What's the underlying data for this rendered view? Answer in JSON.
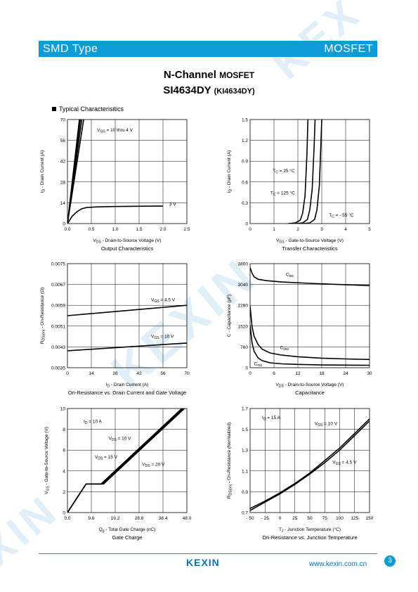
{
  "header": {
    "left": "SMD Type",
    "right": "MOSFET"
  },
  "title": {
    "main": "N-Channel",
    "main_suffix": "MOSFET",
    "part": "SI4634DY",
    "alt": "(KI4634DY)"
  },
  "section": "Typical  Characterisitics",
  "footer": {
    "logo": "KEXIN",
    "url": "www.kexin.com.cn",
    "page": "3"
  },
  "colors": {
    "accent": "#0e9bd6"
  },
  "chart_data": [
    {
      "type": "line",
      "title": "Output Characteristics",
      "xlabel": "V_DS - Drain-to-Source Voltage (V)",
      "ylabel": "I_D - Drain Current (A)",
      "xlim": [
        0,
        2.5
      ],
      "ylim": [
        0,
        70
      ],
      "xticks": [
        0.0,
        0.5,
        1.0,
        1.5,
        2.0,
        2.5
      ],
      "xtick_labels": [
        "0.0",
        "0.5",
        "1.0",
        "1.5",
        "2.0",
        "2.5"
      ],
      "yticks": [
        0,
        14,
        28,
        42,
        56,
        70
      ],
      "ytick_labels": [
        "0",
        "14",
        "28",
        "42",
        "56",
        "70"
      ],
      "series": [
        {
          "name": "V_GS = 10 thru 4 V",
          "x": [
            0,
            0.25
          ],
          "y": [
            0,
            70
          ]
        },
        {
          "x": [
            0,
            0.27
          ],
          "y": [
            0,
            70
          ]
        },
        {
          "x": [
            0,
            0.3
          ],
          "y": [
            0,
            70
          ]
        },
        {
          "x": [
            0,
            0.34
          ],
          "y": [
            0,
            70
          ]
        },
        {
          "name": "3 V",
          "x": [
            0,
            0.1,
            0.2,
            0.3,
            0.4,
            0.6,
            1.0,
            1.5,
            2.0
          ],
          "y": [
            0,
            5,
            8,
            10,
            10.8,
            11.2,
            11.5,
            11.7,
            11.8
          ]
        }
      ],
      "annotations": [
        {
          "text": "V",
          "sub": "GS",
          "rest": " = 10 thru 4 V",
          "x": 0.62,
          "y": 62
        },
        {
          "text": "3 V",
          "sub": "",
          "rest": "",
          "x": 2.13,
          "y": 12
        }
      ]
    },
    {
      "type": "line",
      "title": "Transfer Characteristics",
      "xlabel": "V_GS - Gate-to-Source Voltage (V)",
      "ylabel": "I_D - Drain Current (A)",
      "xlim": [
        0,
        5
      ],
      "ylim": [
        0,
        1.5
      ],
      "xticks": [
        0,
        1,
        2,
        3,
        4,
        5
      ],
      "xtick_labels": [
        "0",
        "1",
        "2",
        "3",
        "4",
        "5"
      ],
      "yticks": [
        0,
        0.3,
        0.6,
        0.9,
        1.2,
        1.5
      ],
      "ytick_labels": [
        "0",
        "0.3",
        "0.6",
        "0.9",
        "1.2",
        "1.5"
      ],
      "series": [
        {
          "name": "T_C = 125 °C",
          "x": [
            1.6,
            1.9,
            2.1,
            2.2,
            2.3,
            2.38,
            2.42
          ],
          "y": [
            0,
            0.01,
            0.05,
            0.15,
            0.4,
            1.0,
            1.5
          ]
        },
        {
          "name": "T_C = 25 °C",
          "x": [
            1.9,
            2.2,
            2.4,
            2.5,
            2.6,
            2.68,
            2.72
          ],
          "y": [
            0,
            0.01,
            0.06,
            0.2,
            0.5,
            1.1,
            1.5
          ]
        },
        {
          "name": "T_C = - 55 °C",
          "x": [
            2.2,
            2.5,
            2.7,
            2.8,
            2.9,
            2.96,
            3.0
          ],
          "y": [
            0,
            0.01,
            0.06,
            0.2,
            0.55,
            1.1,
            1.5
          ]
        }
      ],
      "annotations": [
        {
          "text": "T",
          "sub": "C",
          "rest": " = 25 °C",
          "x": 0.95,
          "y": 0.74
        },
        {
          "text": "T",
          "sub": "C",
          "rest": " = 125 °C",
          "x": 0.85,
          "y": 0.42
        },
        {
          "text": "T",
          "sub": "C",
          "rest": " = - 55 °C",
          "x": 3.3,
          "y": 0.1
        }
      ]
    },
    {
      "type": "line",
      "title": "On-Resistance vs. Drain Current and Gate Voltage",
      "xlabel": "I_D - Drain Current (A)",
      "ylabel": "R_DS(on) - On-Resistance (Ω)",
      "xlim": [
        0,
        70
      ],
      "ylim": [
        0.0035,
        0.0075
      ],
      "xticks": [
        0,
        14,
        28,
        42,
        56,
        70
      ],
      "xtick_labels": [
        "0",
        "14",
        "28",
        "42",
        "56",
        "70"
      ],
      "yticks": [
        0.0035,
        0.0043,
        0.0051,
        0.0059,
        0.0067,
        0.0075
      ],
      "ytick_labels": [
        "0.0035",
        "0.0043",
        "0.0051",
        "0.0059",
        "0.0067",
        "0.0075"
      ],
      "series": [
        {
          "name": "V_GS = 4.5 V",
          "x": [
            0,
            70
          ],
          "y": [
            0.0055,
            0.0059
          ]
        },
        {
          "name": "V_GS = 10 V",
          "x": [
            0,
            70
          ],
          "y": [
            0.00415,
            0.00445
          ]
        }
      ],
      "annotations": [
        {
          "text": "V",
          "sub": "GS",
          "rest": " = 4.5 V",
          "x": 49,
          "y": 0.00605
        },
        {
          "text": "V",
          "sub": "GS",
          "rest": " = 10 V",
          "x": 49,
          "y": 0.00465
        }
      ]
    },
    {
      "type": "line",
      "title": "Capacitance",
      "xlabel": "V_DS - Drain-to-Source Voltage (V)",
      "ylabel": "C - Capacitance (pF)",
      "xlim": [
        0,
        30
      ],
      "ylim": [
        0,
        3800
      ],
      "xticks": [
        0,
        6,
        12,
        18,
        24,
        30
      ],
      "xtick_labels": [
        "0",
        "6",
        "12",
        "18",
        "24",
        "30"
      ],
      "yticks": [
        0,
        760,
        1520,
        2280,
        3040,
        3800
      ],
      "ytick_labels": [
        "0",
        "760",
        "1520",
        "2280",
        "3040",
        "3800"
      ],
      "series": [
        {
          "name": "C_iss",
          "x": [
            0,
            0.5,
            1,
            2,
            4,
            8,
            15,
            22,
            30
          ],
          "y": [
            3650,
            3450,
            3320,
            3230,
            3180,
            3130,
            3080,
            3040,
            3000
          ]
        },
        {
          "name": "C_oss",
          "x": [
            0,
            0.5,
            1,
            2,
            3,
            5,
            8,
            12,
            18,
            24,
            30
          ],
          "y": [
            2250,
            1500,
            1150,
            850,
            680,
            540,
            460,
            400,
            350,
            320,
            300
          ]
        },
        {
          "name": "C_rss",
          "x": [
            0,
            0.5,
            1,
            2,
            3,
            5,
            8,
            12,
            18,
            24,
            30
          ],
          "y": [
            1550,
            900,
            600,
            360,
            260,
            180,
            140,
            120,
            100,
            95,
            90
          ]
        }
      ],
      "annotations": [
        {
          "text": "C",
          "sub": "iss",
          "rest": "",
          "x": 9,
          "y": 3350
        },
        {
          "text": "C",
          "sub": "oss",
          "rest": "",
          "x": 7.5,
          "y": 680
        },
        {
          "text": "C",
          "sub": "rss",
          "rest": "",
          "x": 1,
          "y": 90
        }
      ]
    },
    {
      "type": "line",
      "title": "Gate Charge",
      "xlabel": "Q_g - Total Gate Charge (nC)",
      "ylabel": "V_GS - Gate-to-Source Voltage (V)",
      "xlim": [
        0,
        48
      ],
      "ylim": [
        0,
        10
      ],
      "xticks": [
        0,
        9.6,
        19.2,
        28.8,
        38.4,
        48
      ],
      "xtick_labels": [
        "0.0",
        "9.6",
        "19.2",
        "28.8",
        "38.4",
        "48.0"
      ],
      "yticks": [
        0,
        2,
        4,
        6,
        8,
        10
      ],
      "ytick_labels": [
        "0",
        "2",
        "4",
        "6",
        "8",
        "10"
      ],
      "series": [
        {
          "name": "V_DS = 10 V",
          "x": [
            0,
            7.5,
            13.5,
            46
          ],
          "y": [
            0,
            2.75,
            2.75,
            10
          ]
        },
        {
          "name": "V_DS = 15 V",
          "x": [
            0,
            7.5,
            14.0,
            46.5
          ],
          "y": [
            0,
            2.75,
            2.75,
            10
          ]
        },
        {
          "name": "V_DS = 20 V",
          "x": [
            0,
            7.5,
            14.5,
            47
          ],
          "y": [
            0,
            2.75,
            2.75,
            10
          ]
        }
      ],
      "annotations": [
        {
          "text": "I",
          "sub": "D",
          "rest": " = 10 A",
          "x": 6.5,
          "y": 8.6
        },
        {
          "text": "V",
          "sub": "DS",
          "rest": " = 10 V",
          "x": 16.5,
          "y": 7.0
        },
        {
          "text": "V",
          "sub": "DS",
          "rest": " = 15 V",
          "x": 11,
          "y": 5.2
        },
        {
          "text": "V",
          "sub": "DS",
          "rest": " = 20 V",
          "x": 30,
          "y": 4.5
        }
      ]
    },
    {
      "type": "line",
      "title": "On-Resistance vs. Junction Temperature",
      "xlabel": "T_J - Junction Temperature (°C)",
      "ylabel": "R_DS(on) - On-Resistance (Normalized)",
      "xlim": [
        -50,
        150
      ],
      "ylim": [
        0.7,
        1.7
      ],
      "xticks": [
        -50,
        -25,
        0,
        25,
        50,
        75,
        100,
        125,
        150
      ],
      "xtick_labels": [
        "- 50",
        "- 25",
        "0",
        "25",
        "50",
        "75",
        "100",
        "125",
        "150"
      ],
      "yticks": [
        0.7,
        0.9,
        1.1,
        1.3,
        1.5,
        1.7
      ],
      "ytick_labels": [
        "0.7",
        "0.9",
        "1.1",
        "1.3",
        "1.5",
        "1.7"
      ],
      "series": [
        {
          "name": "V_GS = 10 V",
          "x": [
            -50,
            -25,
            0,
            25,
            50,
            75,
            100,
            125,
            150
          ],
          "y": [
            0.74,
            0.81,
            0.89,
            0.98,
            1.08,
            1.2,
            1.32,
            1.46,
            1.6
          ]
        },
        {
          "name": "V_GS = 4.5 V",
          "x": [
            -50,
            -25,
            0,
            25,
            50,
            75,
            100,
            125,
            150
          ],
          "y": [
            0.72,
            0.8,
            0.88,
            0.97,
            1.07,
            1.18,
            1.3,
            1.44,
            1.58
          ]
        }
      ],
      "annotations": [
        {
          "text": "I",
          "sub": "D",
          "rest": " = 15 A",
          "x": -30,
          "y": 1.6
        },
        {
          "text": "V",
          "sub": "GS",
          "rest": " = 10 V",
          "x": 58,
          "y": 1.54
        },
        {
          "text": "V",
          "sub": "GS",
          "rest": " = 4.5 V",
          "x": 88,
          "y": 1.17
        }
      ]
    }
  ]
}
